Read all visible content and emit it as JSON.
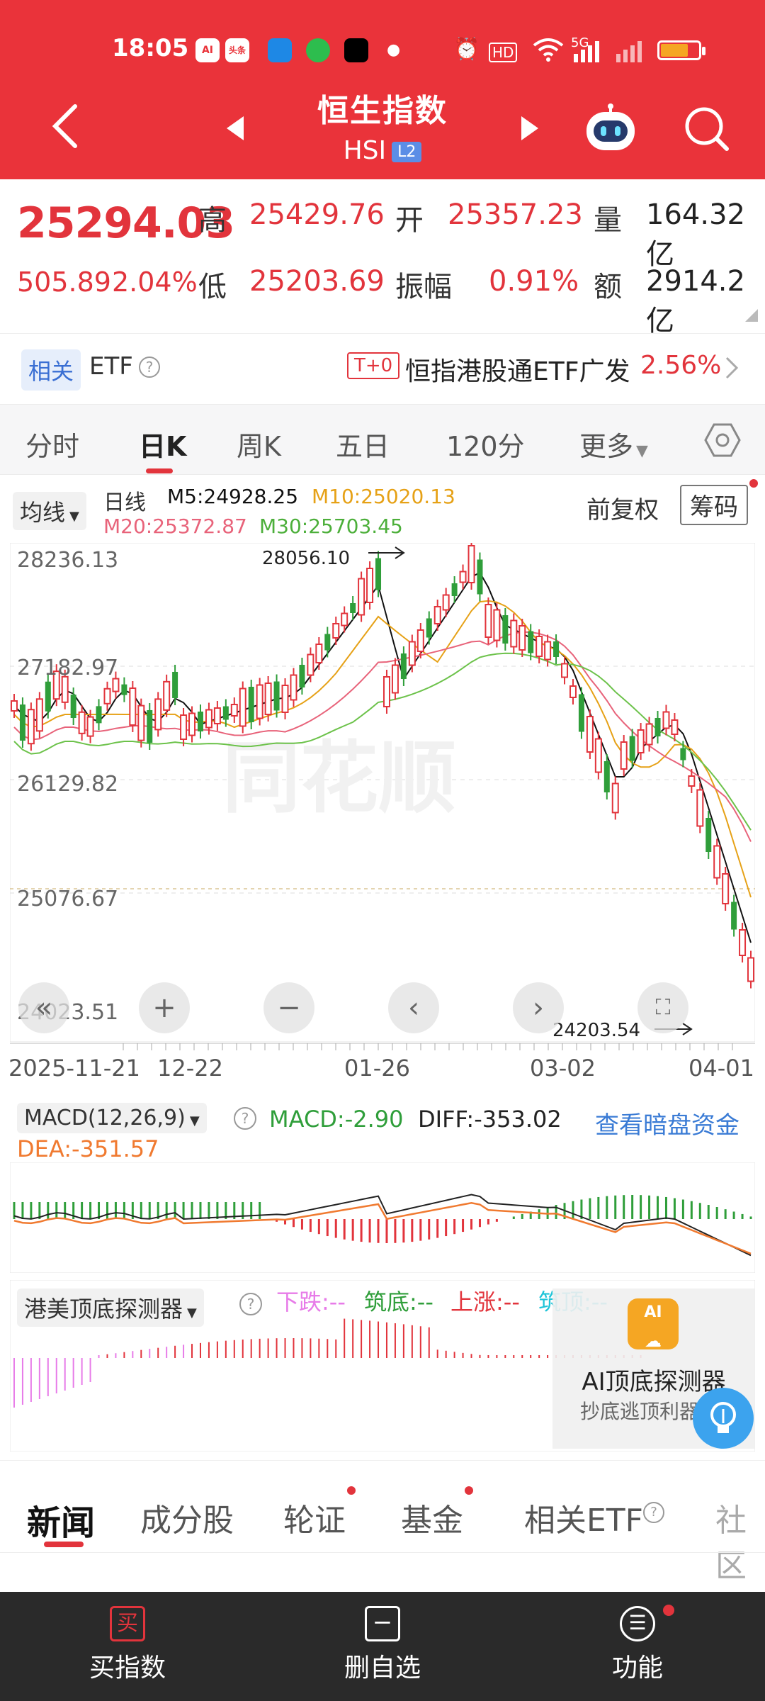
{
  "status_bar": {
    "time": "18:05",
    "apps": [
      "AI",
      "头条",
      "",
      "",
      ""
    ],
    "network": "5G"
  },
  "nav": {
    "title": "恒生指数",
    "code": "HSI",
    "level": "L2"
  },
  "quote": {
    "price": "25294.03",
    "change": "505.89",
    "change_pct": "2.04%",
    "high_label": "高",
    "high": "25429.76",
    "open_label": "开",
    "open": "25357.23",
    "volume_label": "量",
    "volume": "164.32亿",
    "low_label": "低",
    "low": "25203.69",
    "amplitude_label": "振幅",
    "amplitude": "0.91%",
    "amount_label": "额",
    "amount": "2914.2亿"
  },
  "etf": {
    "tag": "相关",
    "label": "ETF",
    "t0": "T+0",
    "name": "恒指港股通ETF广发",
    "pct": "2.56%"
  },
  "period_tabs": [
    "分时",
    "日K",
    "周K",
    "五日",
    "120分",
    "更多"
  ],
  "kline": {
    "ma_dropdown": "均线",
    "line_type": "日线",
    "m5": "M5:24928.25",
    "m10": "M10:25020.13",
    "m20": "M20:25372.87",
    "m30": "M30:25703.45",
    "adjust": "前复权",
    "chips": "筹码",
    "y_labels": [
      "28236.13",
      "27182.97",
      "26129.82",
      "25076.67",
      "24023.51"
    ],
    "high_marker": "28056.10",
    "low_marker": "24203.54",
    "x_labels": [
      "2025-11-21",
      "12-22",
      "01-26",
      "03-02",
      "04-01"
    ],
    "watermark": "同花顺"
  },
  "macd": {
    "selector": "MACD(12,26,9)",
    "macd": "MACD:-2.90",
    "diff": "DIFF:-353.02",
    "dea": "DEA:-351.57",
    "dark_pool": "查看暗盘资金"
  },
  "detector": {
    "selector": "港美顶底探测器",
    "down": "下跌:--",
    "bottom": "筑底:--",
    "up": "上涨:--",
    "top": "筑顶:--",
    "ad_title": "AI顶底探测器",
    "ad_sub": "抄底逃顶利器"
  },
  "news_tabs": [
    "新闻",
    "成分股",
    "轮证",
    "基金",
    "相关ETF",
    "社区"
  ],
  "bottom_bar": {
    "buy": "买指数",
    "remove": "删自选",
    "functions": "功能"
  },
  "colors": {
    "brand_red": "#ea333a",
    "up_red": "#e2343c",
    "down_green": "#2f9e3a",
    "m5": "#111111",
    "m10": "#e6a116",
    "m20": "#e8637a",
    "m30": "#6cc24a"
  }
}
